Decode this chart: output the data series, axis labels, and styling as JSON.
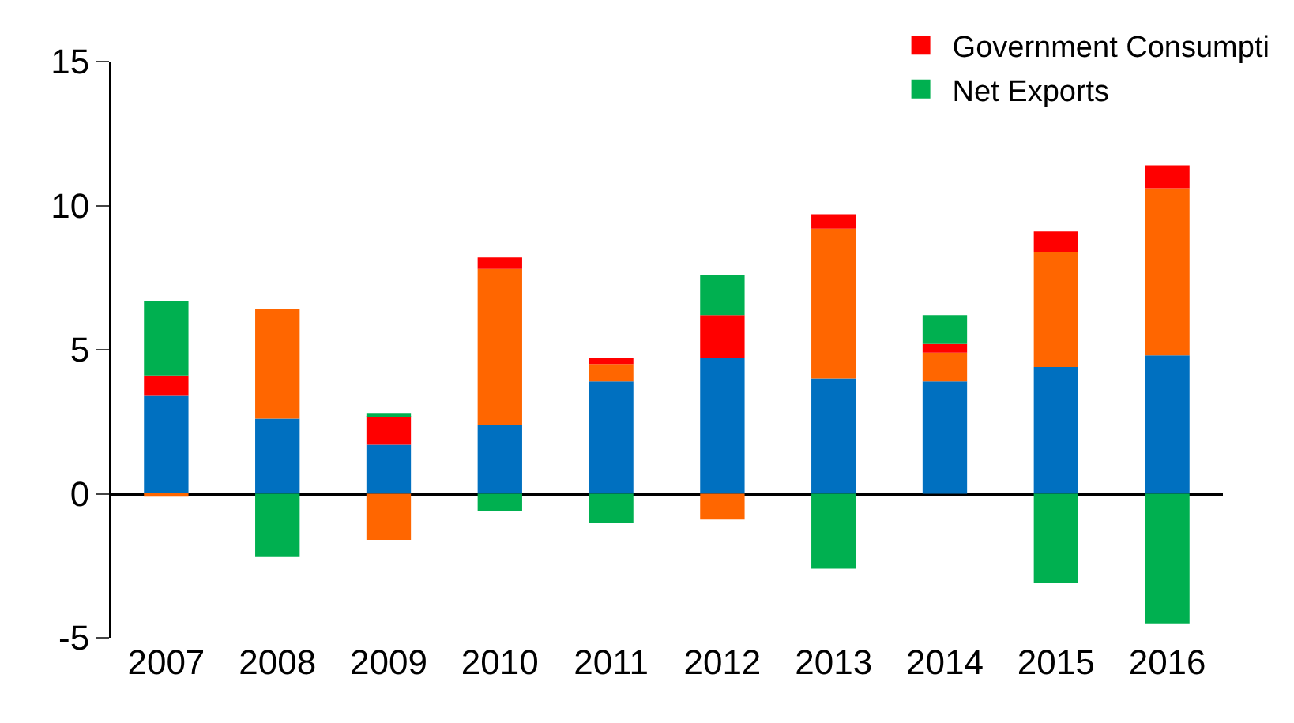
{
  "chart_data": {
    "type": "bar",
    "stacked": true,
    "categories": [
      "2007",
      "2008",
      "2009",
      "2010",
      "2011",
      "2012",
      "2013",
      "2014",
      "2015",
      "2016"
    ],
    "series": [
      {
        "color": "#0070c0",
        "values": [
          3.4,
          2.6,
          1.7,
          2.4,
          3.9,
          4.7,
          4.0,
          3.9,
          4.4,
          4.8
        ]
      },
      {
        "color": "#ff6600",
        "values": [
          -0.1,
          3.8,
          -1.6,
          5.4,
          0.6,
          -0.9,
          5.2,
          1.0,
          4.0,
          5.8
        ]
      },
      {
        "name": "Government Consumpti",
        "color": "#ff0000",
        "values": [
          0.7,
          0.0,
          1.0,
          0.4,
          0.2,
          1.5,
          0.5,
          0.3,
          0.7,
          0.8
        ]
      },
      {
        "name": "Net Exports",
        "color": "#00b050",
        "values": [
          2.6,
          -2.2,
          0.1,
          -0.6,
          -1.0,
          1.4,
          -2.6,
          1.0,
          -3.1,
          -4.5
        ]
      }
    ],
    "ylim": [
      -5,
      15
    ],
    "yticks": [
      -5,
      0,
      5,
      10,
      15
    ],
    "legend": "top right"
  }
}
